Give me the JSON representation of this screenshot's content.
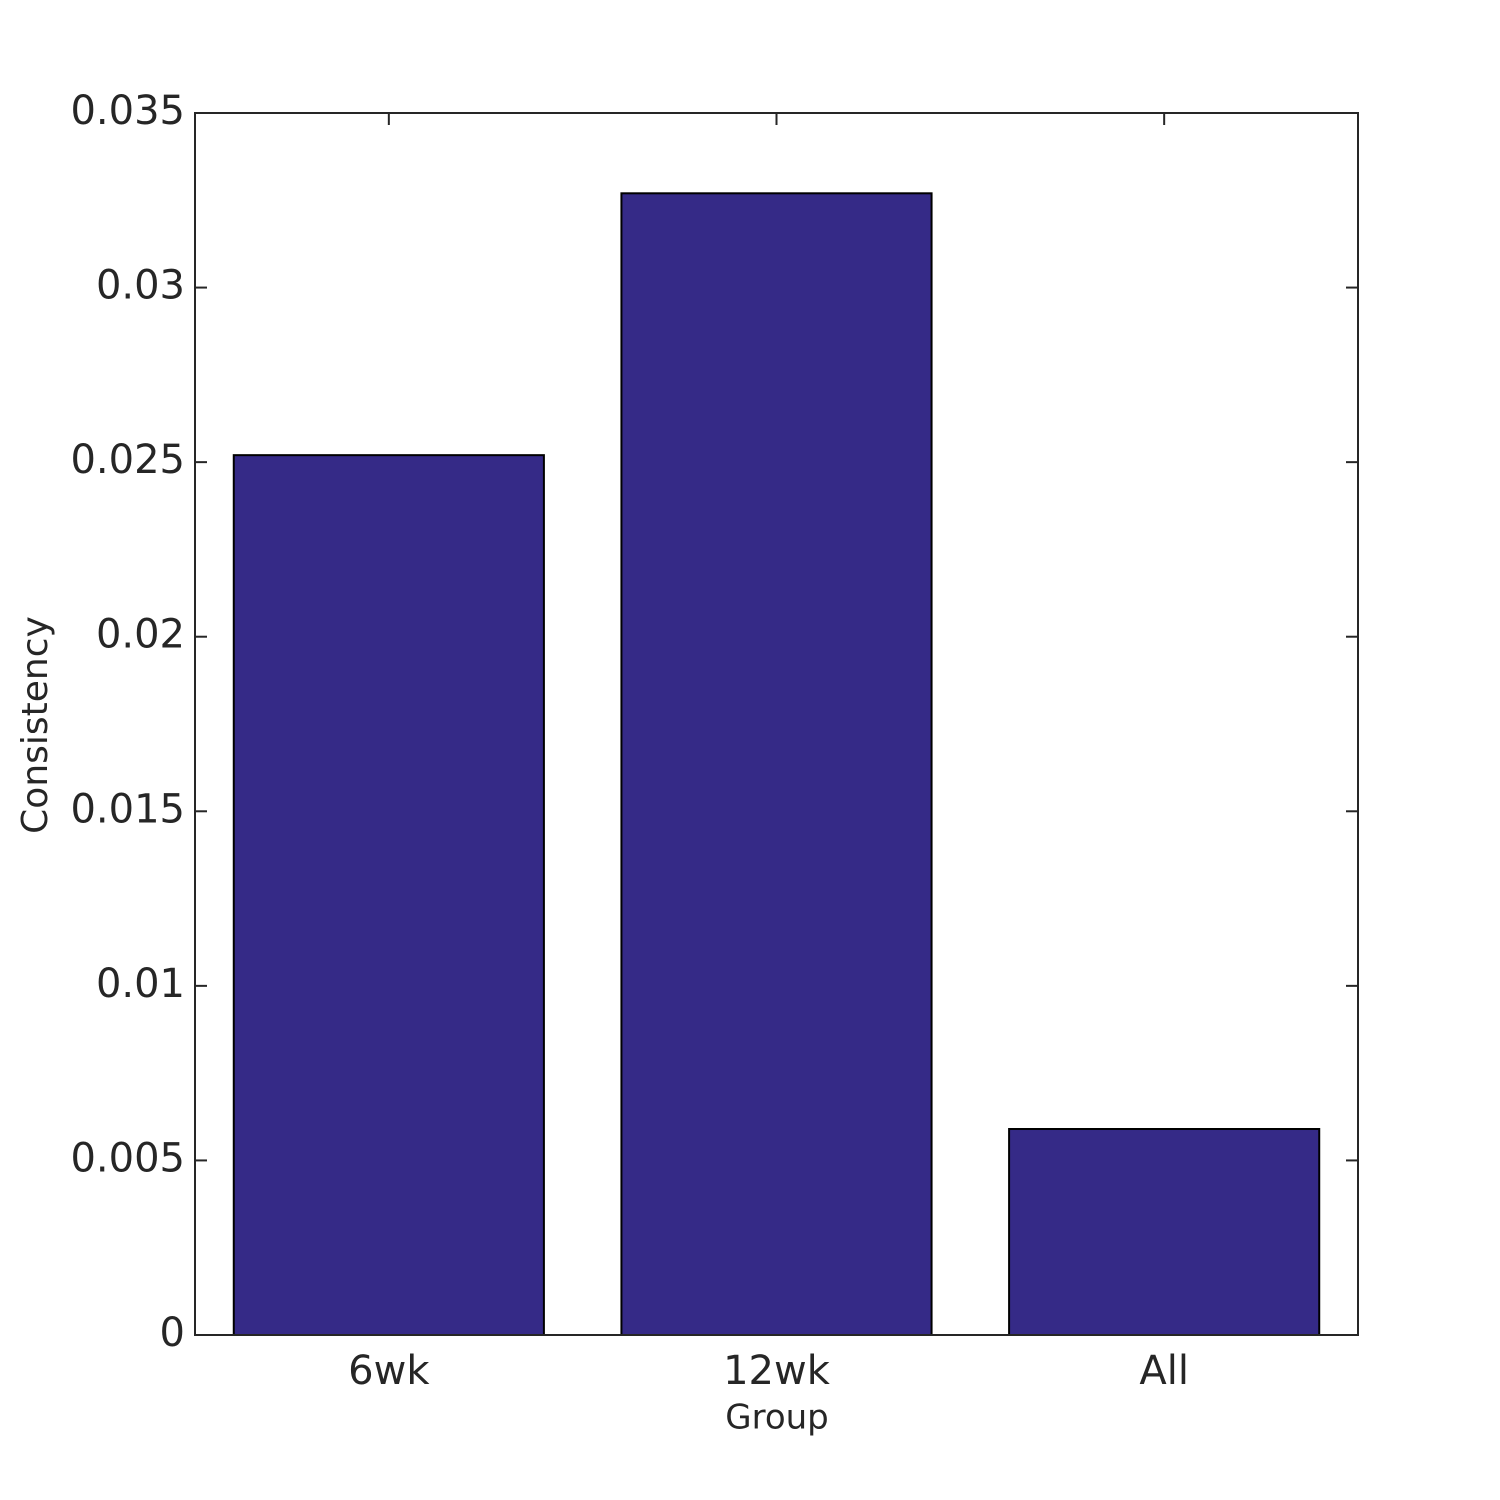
{
  "chart_data": {
    "type": "bar",
    "x_label": "Group",
    "y_label": "Consistency",
    "categories": [
      "6wk",
      "12wk",
      "All"
    ],
    "values": [
      0.0252,
      0.0327,
      0.0059
    ],
    "color": "#352a87",
    "ylim": [
      0,
      0.035
    ],
    "yticks": [
      0,
      0.005,
      0.01,
      0.015,
      0.02,
      0.025,
      0.03,
      0.035
    ],
    "grid": false
  }
}
